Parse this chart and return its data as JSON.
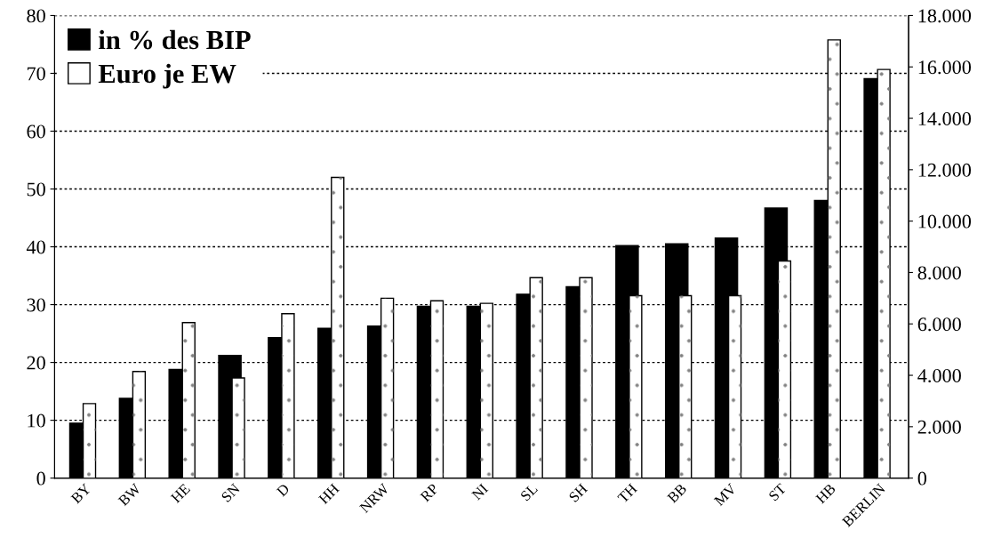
{
  "chart_data": {
    "type": "bar",
    "categories": [
      "BY",
      "BW",
      "HE",
      "SN",
      "D",
      "HH",
      "NRW",
      "RP",
      "NI",
      "SL",
      "SH",
      "TH",
      "BB",
      "MV",
      "ST",
      "HB",
      "BERLIN"
    ],
    "series": [
      {
        "name": "in % des BIP",
        "color": "#000000",
        "values": [
          9.5,
          13.8,
          18.8,
          21.2,
          24.3,
          25.9,
          26.3,
          29.7,
          29.7,
          31.8,
          33.1,
          40.2,
          40.5,
          41.5,
          46.7,
          48.0,
          69.1
        ]
      },
      {
        "name": "Euro je EW",
        "color": "#ffffff",
        "axis": "y2",
        "values": [
          2900,
          4150,
          6050,
          3900,
          6400,
          11700,
          7000,
          6900,
          6800,
          7800,
          7800,
          7100,
          7100,
          7100,
          8450,
          17050,
          15900
        ]
      }
    ],
    "ylim": [
      0,
      80
    ],
    "yticks": [
      0,
      10,
      20,
      30,
      40,
      50,
      60,
      70,
      80
    ],
    "y2lim": [
      0,
      18000
    ],
    "y2ticks": [
      0,
      {
        "value": 2000,
        "label": "2.000"
      },
      {
        "value": 4000,
        "label": "4.000"
      },
      {
        "value": 6000,
        "label": "6.000"
      },
      {
        "value": 8000,
        "label": "8.000"
      },
      {
        "value": 10000,
        "label": "10.000"
      },
      {
        "value": 12000,
        "label": "12.000"
      },
      {
        "value": 14000,
        "label": "14.000"
      },
      {
        "value": 16000,
        "label": "16.000"
      },
      {
        "value": 18000,
        "label": "18.000"
      }
    ],
    "grid": "y",
    "legend": "top left"
  }
}
